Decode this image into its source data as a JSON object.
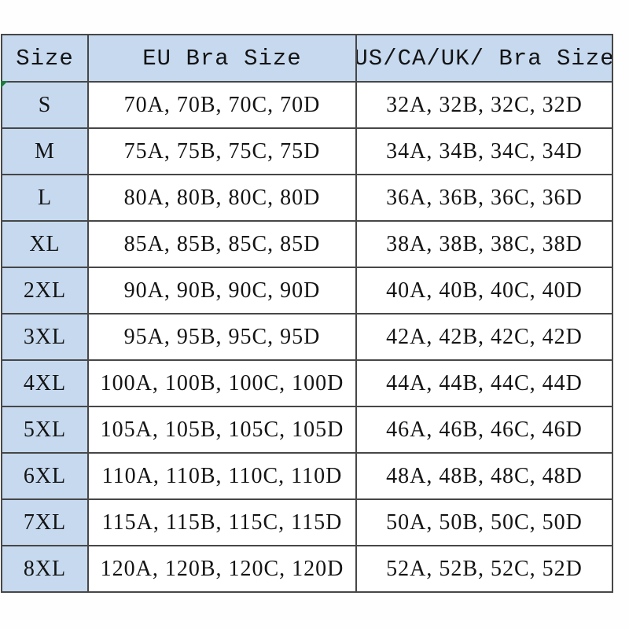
{
  "chart_data": {
    "type": "table",
    "title": "",
    "columns": [
      "Size",
      "EU Bra Size",
      "US/CA/UK/ Bra Size"
    ],
    "rows": [
      {
        "size": "S",
        "eu": "70A, 70B, 70C, 70D",
        "us": "32A, 32B, 32C, 32D"
      },
      {
        "size": "M",
        "eu": "75A, 75B, 75C, 75D",
        "us": "34A, 34B, 34C, 34D"
      },
      {
        "size": "L",
        "eu": "80A, 80B, 80C, 80D",
        "us": "36A, 36B, 36C, 36D"
      },
      {
        "size": "XL",
        "eu": "85A, 85B, 85C, 85D",
        "us": "38A, 38B, 38C, 38D"
      },
      {
        "size": "2XL",
        "eu": "90A, 90B, 90C, 90D",
        "us": "40A, 40B, 40C, 40D"
      },
      {
        "size": "3XL",
        "eu": "95A, 95B, 95C, 95D",
        "us": "42A, 42B, 42C, 42D"
      },
      {
        "size": "4XL",
        "eu": "100A, 100B, 100C, 100D",
        "us": "44A, 44B, 44C, 44D"
      },
      {
        "size": "5XL",
        "eu": "105A, 105B, 105C, 105D",
        "us": "46A, 46B, 46C, 46D"
      },
      {
        "size": "6XL",
        "eu": "110A, 110B, 110C, 110D",
        "us": "48A, 48B, 48C, 48D"
      },
      {
        "size": "7XL",
        "eu": "115A, 115B, 115C, 115D",
        "us": "50A, 50B, 50C, 50D"
      },
      {
        "size": "8XL",
        "eu": "120A, 120B, 120C, 120D",
        "us": "52A, 52B, 52C, 52D"
      }
    ]
  },
  "colors": {
    "header_bg": "#c6d9ef",
    "label_bg": "#c6d9ef",
    "border": "#474747",
    "text": "#141414",
    "marker_green": "#1e7a3c"
  }
}
